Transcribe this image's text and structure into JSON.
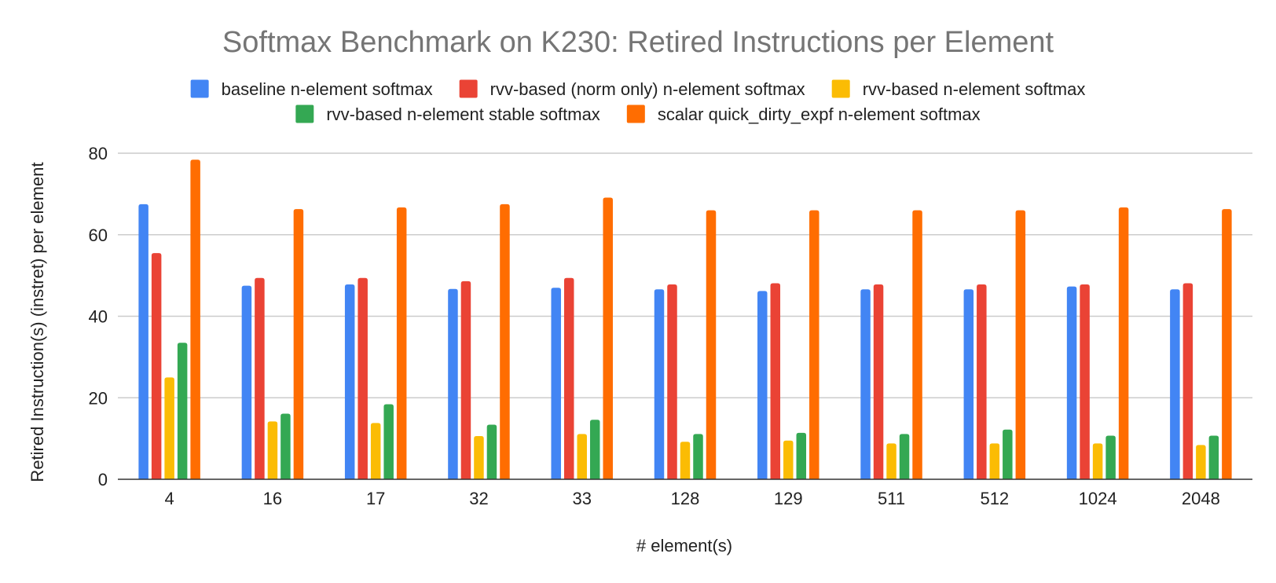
{
  "chart_data": {
    "type": "bar",
    "title": "Softmax Benchmark on K230: Retired Instructions per Element",
    "xlabel": "# element(s)",
    "ylabel": "Retired Instruction(s) (instret) per element",
    "categories": [
      "4",
      "16",
      "17",
      "32",
      "33",
      "128",
      "129",
      "511",
      "512",
      "1024",
      "2048"
    ],
    "ylim": [
      0,
      80
    ],
    "yticks": [
      0,
      20,
      40,
      60,
      80
    ],
    "grid": true,
    "legend_position": "top",
    "series": [
      {
        "name": "baseline n-element softmax",
        "color": "#4285F4",
        "values": [
          67.5,
          47.5,
          47.8,
          46.7,
          47.0,
          46.6,
          46.2,
          46.6,
          46.6,
          47.3,
          46.6
        ]
      },
      {
        "name": "rvv-based (norm only) n-element softmax",
        "color": "#EA4335",
        "values": [
          55.5,
          49.4,
          49.4,
          48.6,
          49.4,
          47.8,
          48.1,
          47.8,
          47.8,
          47.8,
          48.1
        ]
      },
      {
        "name": "rvv-based n-element softmax",
        "color": "#FBBC04",
        "values": [
          25.0,
          14.2,
          13.8,
          10.6,
          11.1,
          9.2,
          9.5,
          8.8,
          8.8,
          8.8,
          8.4
        ]
      },
      {
        "name": "rvv-based n-element stable softmax",
        "color": "#34A853",
        "values": [
          33.5,
          16.1,
          18.4,
          13.4,
          14.6,
          11.1,
          11.4,
          11.1,
          12.2,
          10.7,
          10.7
        ]
      },
      {
        "name": "scalar quick_dirty_expf n-element softmax",
        "color": "#FF6D01",
        "values": [
          78.4,
          66.3,
          66.7,
          67.5,
          69.1,
          66.0,
          66.0,
          66.0,
          66.0,
          66.7,
          66.3
        ]
      }
    ]
  }
}
